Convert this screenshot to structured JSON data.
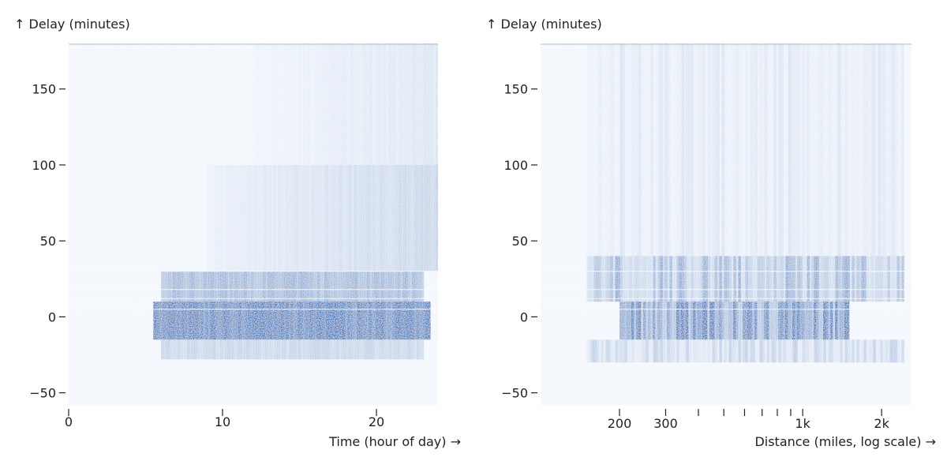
{
  "chart_data": [
    {
      "type": "heatmap",
      "ylabel": "↑ Delay (minutes)",
      "xlabel": "Time (hour of day) →",
      "xscale": "linear",
      "xlim": [
        0,
        24
      ],
      "ylim": [
        -58,
        180
      ],
      "xticks": [
        0,
        10,
        20
      ],
      "xtick_labels": [
        "0",
        "10",
        "20"
      ],
      "yticks": [
        -50,
        0,
        50,
        100,
        150
      ],
      "ytick_labels": [
        "−50",
        "0",
        "50",
        "100",
        "150"
      ],
      "color": "#2f6db5",
      "background": "#f5f9fe",
      "density_bands": [
        {
          "x_range": [
            5.5,
            23.5
          ],
          "y_range": [
            -15,
            10
          ],
          "level": "very high"
        },
        {
          "x_range": [
            6,
            23
          ],
          "y_range": [
            10,
            30
          ],
          "level": "high"
        },
        {
          "x_range": [
            6,
            23
          ],
          "y_range": [
            -28,
            -15
          ],
          "level": "low"
        },
        {
          "x_range": [
            9,
            24
          ],
          "y_range": [
            30,
            100
          ],
          "level": "medium, increasing with hour"
        },
        {
          "x_range": [
            12,
            24
          ],
          "y_range": [
            100,
            180
          ],
          "level": "sparse, increasing with hour"
        }
      ]
    },
    {
      "type": "heatmap",
      "ylabel": "↑ Delay (minutes)",
      "xlabel": "Distance (miles, log scale) →",
      "xscale": "log",
      "xlim": [
        100,
        2600
      ],
      "ylim": [
        -58,
        180
      ],
      "xticks": [
        200,
        300,
        400,
        500,
        600,
        700,
        800,
        900,
        1000,
        2000
      ],
      "xtick_labels": [
        "200",
        "300",
        "",
        "",
        "",
        "",
        "",
        "",
        "1k",
        "2k"
      ],
      "yticks": [
        -50,
        0,
        50,
        100,
        150
      ],
      "ytick_labels": [
        "−50",
        "0",
        "50",
        "100",
        "150"
      ],
      "color": "#2f6db5",
      "background": "#f5f9fe",
      "density_bands": [
        {
          "x_range": [
            200,
            1500
          ],
          "y_range": [
            -15,
            10
          ],
          "level": "very high"
        },
        {
          "x_range": [
            150,
            2400
          ],
          "y_range": [
            10,
            40
          ],
          "level": "high"
        },
        {
          "x_range": [
            150,
            2400
          ],
          "y_range": [
            -30,
            -15
          ],
          "level": "low"
        },
        {
          "x_range": [
            150,
            2400
          ],
          "y_range": [
            40,
            180
          ],
          "level": "sparse vertical streaks"
        }
      ]
    }
  ]
}
